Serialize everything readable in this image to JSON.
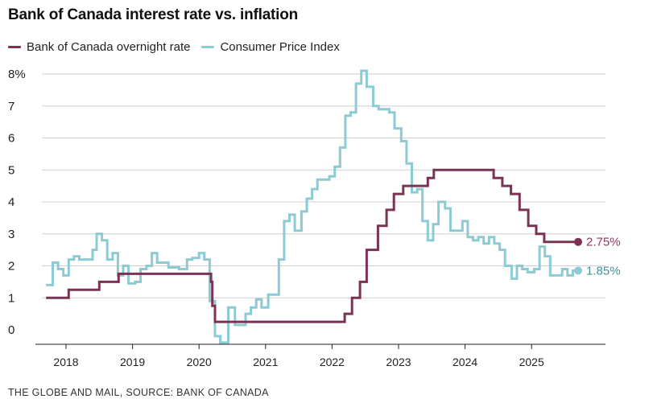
{
  "chart_data": {
    "type": "line",
    "title": "Bank of Canada interest rate vs. inflation",
    "source": "THE GLOBE AND MAIL, SOURCE: BANK OF CANADA",
    "xlabel": "",
    "ylabel": "",
    "ylim": [
      0,
      8
    ],
    "xlim": [
      2017.7,
      2025.75
    ],
    "y_ticks": [
      "0",
      "1",
      "2",
      "3",
      "4",
      "5",
      "6",
      "7",
      "8%"
    ],
    "x_ticks": [
      "2018",
      "2019",
      "2020",
      "2021",
      "2022",
      "2023",
      "2024",
      "2025"
    ],
    "grid": true,
    "legend_position": "top-left",
    "series": [
      {
        "name": "Bank of Canada overnight rate",
        "color": "#7b3355",
        "end_label": "2.75%",
        "points": [
          [
            2017.7,
            1.0
          ],
          [
            2018.04,
            1.25
          ],
          [
            2018.5,
            1.5
          ],
          [
            2018.79,
            1.75
          ],
          [
            2020.18,
            1.5
          ],
          [
            2020.2,
            0.75
          ],
          [
            2020.24,
            0.25
          ],
          [
            2022.19,
            0.5
          ],
          [
            2022.3,
            1.0
          ],
          [
            2022.42,
            1.5
          ],
          [
            2022.52,
            2.5
          ],
          [
            2022.69,
            3.25
          ],
          [
            2022.82,
            3.75
          ],
          [
            2022.93,
            4.25
          ],
          [
            2023.07,
            4.5
          ],
          [
            2023.44,
            4.75
          ],
          [
            2023.53,
            5.0
          ],
          [
            2024.43,
            4.75
          ],
          [
            2024.56,
            4.5
          ],
          [
            2024.69,
            4.25
          ],
          [
            2024.82,
            3.75
          ],
          [
            2024.95,
            3.25
          ],
          [
            2025.07,
            3.0
          ],
          [
            2025.19,
            2.75
          ],
          [
            2025.7,
            2.75
          ]
        ]
      },
      {
        "name": "Consumer Price Index",
        "color": "#8ccbd4",
        "end_label": "1.85%",
        "points": [
          [
            2017.7,
            1.4
          ],
          [
            2017.8,
            2.1
          ],
          [
            2017.88,
            1.9
          ],
          [
            2017.96,
            1.7
          ],
          [
            2018.04,
            2.2
          ],
          [
            2018.12,
            2.3
          ],
          [
            2018.2,
            2.2
          ],
          [
            2018.4,
            2.5
          ],
          [
            2018.46,
            3.0
          ],
          [
            2018.54,
            2.8
          ],
          [
            2018.62,
            2.2
          ],
          [
            2018.7,
            2.4
          ],
          [
            2018.78,
            1.7
          ],
          [
            2018.86,
            2.0
          ],
          [
            2018.94,
            1.45
          ],
          [
            2019.04,
            1.5
          ],
          [
            2019.12,
            1.9
          ],
          [
            2019.21,
            2.0
          ],
          [
            2019.29,
            2.4
          ],
          [
            2019.37,
            2.1
          ],
          [
            2019.54,
            1.95
          ],
          [
            2019.7,
            1.9
          ],
          [
            2019.82,
            2.2
          ],
          [
            2019.9,
            2.25
          ],
          [
            2020.0,
            2.4
          ],
          [
            2020.08,
            2.2
          ],
          [
            2020.16,
            0.9
          ],
          [
            2020.24,
            -0.2
          ],
          [
            2020.32,
            -0.4
          ],
          [
            2020.44,
            0.7
          ],
          [
            2020.54,
            0.15
          ],
          [
            2020.7,
            0.5
          ],
          [
            2020.78,
            0.7
          ],
          [
            2020.86,
            0.95
          ],
          [
            2020.94,
            0.7
          ],
          [
            2021.04,
            1.1
          ],
          [
            2021.12,
            1.1
          ],
          [
            2021.2,
            2.2
          ],
          [
            2021.28,
            3.4
          ],
          [
            2021.36,
            3.6
          ],
          [
            2021.44,
            3.1
          ],
          [
            2021.54,
            3.7
          ],
          [
            2021.62,
            4.1
          ],
          [
            2021.7,
            4.4
          ],
          [
            2021.78,
            4.7
          ],
          [
            2021.86,
            4.7
          ],
          [
            2021.96,
            4.8
          ],
          [
            2022.04,
            5.1
          ],
          [
            2022.12,
            5.7
          ],
          [
            2022.2,
            6.7
          ],
          [
            2022.28,
            6.8
          ],
          [
            2022.36,
            7.7
          ],
          [
            2022.44,
            8.1
          ],
          [
            2022.52,
            7.6
          ],
          [
            2022.62,
            7.0
          ],
          [
            2022.7,
            6.9
          ],
          [
            2022.78,
            6.9
          ],
          [
            2022.86,
            6.8
          ],
          [
            2022.94,
            6.3
          ],
          [
            2023.04,
            5.9
          ],
          [
            2023.12,
            5.2
          ],
          [
            2023.2,
            4.3
          ],
          [
            2023.28,
            4.4
          ],
          [
            2023.36,
            3.4
          ],
          [
            2023.44,
            2.8
          ],
          [
            2023.52,
            3.3
          ],
          [
            2023.6,
            4.0
          ],
          [
            2023.7,
            3.8
          ],
          [
            2023.78,
            3.1
          ],
          [
            2023.96,
            3.4
          ],
          [
            2024.04,
            2.9
          ],
          [
            2024.12,
            2.8
          ],
          [
            2024.2,
            2.9
          ],
          [
            2024.28,
            2.7
          ],
          [
            2024.36,
            2.9
          ],
          [
            2024.44,
            2.7
          ],
          [
            2024.52,
            2.5
          ],
          [
            2024.6,
            2.0
          ],
          [
            2024.7,
            1.6
          ],
          [
            2024.78,
            2.0
          ],
          [
            2024.86,
            1.9
          ],
          [
            2024.94,
            1.8
          ],
          [
            2025.04,
            1.9
          ],
          [
            2025.12,
            2.6
          ],
          [
            2025.2,
            2.3
          ],
          [
            2025.28,
            1.7
          ],
          [
            2025.36,
            1.7
          ],
          [
            2025.46,
            1.9
          ],
          [
            2025.54,
            1.7
          ],
          [
            2025.62,
            1.85
          ],
          [
            2025.7,
            1.85
          ]
        ]
      }
    ]
  }
}
